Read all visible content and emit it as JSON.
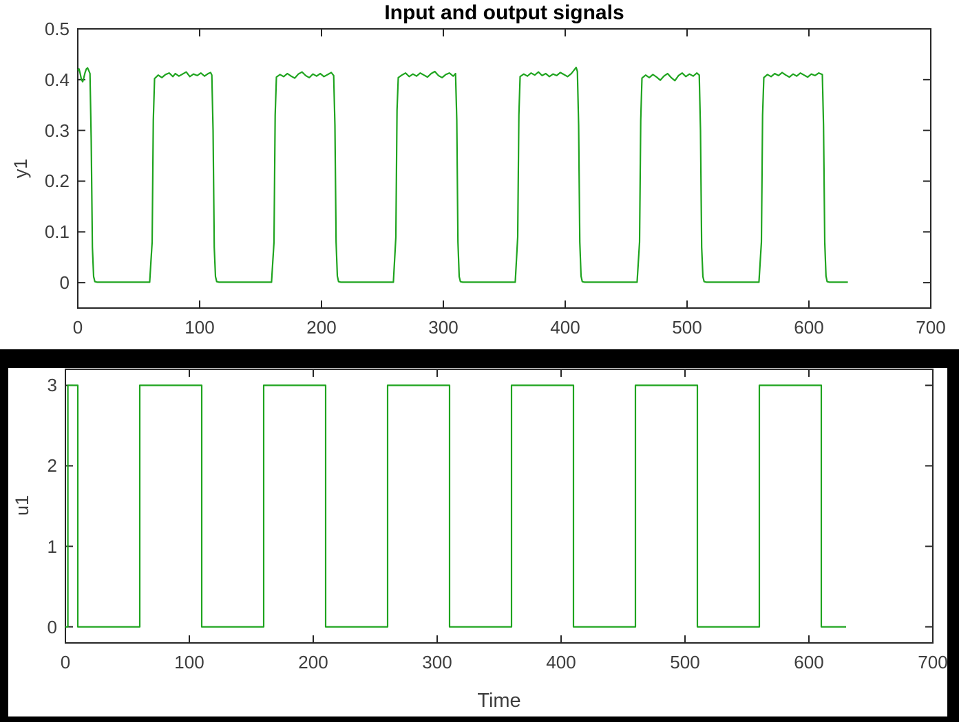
{
  "figure_title": "Input and output signals",
  "colors": {
    "line": "#1fa41f",
    "axis": "#262626",
    "tick_text": "#3d3d3d",
    "title_text": "#000000",
    "frame": "#000000",
    "background": "#ffffff"
  },
  "chart_data": [
    {
      "type": "line",
      "title": "Input and output signals",
      "ylabel": "y1",
      "xlabel": "",
      "xlim": [
        0,
        700
      ],
      "ylim": [
        -0.05,
        0.5
      ],
      "xtick_values": [
        0,
        100,
        200,
        300,
        400,
        500,
        600,
        700
      ],
      "xtick_labels": [
        "0",
        "100",
        "200",
        "300",
        "400",
        "500",
        "600",
        "700"
      ],
      "ytick_values": [
        0,
        0.1,
        0.2,
        0.3,
        0.4,
        0.5
      ],
      "ytick_labels": [
        "0",
        "0.1",
        "0.2",
        "0.3",
        "0.4",
        "0.5"
      ],
      "grid": false,
      "legend": null,
      "series": [
        {
          "name": "y1",
          "color": "#1fa41f",
          "points": [
            [
              0,
              0.418
            ],
            [
              1,
              0.421
            ],
            [
              2,
              0.412
            ],
            [
              3,
              0.4
            ],
            [
              4,
              0.396
            ],
            [
              5,
              0.404
            ],
            [
              6,
              0.414
            ],
            [
              7,
              0.421
            ],
            [
              8,
              0.423
            ],
            [
              9,
              0.418
            ],
            [
              10,
              0.412
            ],
            [
              11,
              0.28
            ],
            [
              12,
              0.07
            ],
            [
              13,
              0.012
            ],
            [
              14,
              0.002
            ],
            [
              16,
              0.001
            ],
            [
              59,
              0.001
            ],
            [
              61,
              0.08
            ],
            [
              62,
              0.32
            ],
            [
              63,
              0.402
            ],
            [
              66,
              0.409
            ],
            [
              69,
              0.404
            ],
            [
              72,
              0.41
            ],
            [
              75,
              0.413
            ],
            [
              78,
              0.406
            ],
            [
              80,
              0.412
            ],
            [
              83,
              0.407
            ],
            [
              86,
              0.411
            ],
            [
              89,
              0.415
            ],
            [
              92,
              0.406
            ],
            [
              95,
              0.411
            ],
            [
              98,
              0.408
            ],
            [
              101,
              0.413
            ],
            [
              104,
              0.407
            ],
            [
              107,
              0.412
            ],
            [
              109,
              0.414
            ],
            [
              110,
              0.409
            ],
            [
              111,
              0.3
            ],
            [
              112,
              0.07
            ],
            [
              113,
              0.012
            ],
            [
              114,
              0.002
            ],
            [
              116,
              0.001
            ],
            [
              159,
              0.001
            ],
            [
              161,
              0.08
            ],
            [
              162,
              0.33
            ],
            [
              163,
              0.405
            ],
            [
              166,
              0.41
            ],
            [
              169,
              0.406
            ],
            [
              172,
              0.412
            ],
            [
              175,
              0.407
            ],
            [
              178,
              0.403
            ],
            [
              181,
              0.411
            ],
            [
              184,
              0.415
            ],
            [
              187,
              0.408
            ],
            [
              190,
              0.404
            ],
            [
              193,
              0.411
            ],
            [
              196,
              0.407
            ],
            [
              199,
              0.412
            ],
            [
              202,
              0.406
            ],
            [
              205,
              0.41
            ],
            [
              208,
              0.414
            ],
            [
              210,
              0.408
            ],
            [
              211,
              0.31
            ],
            [
              212,
              0.08
            ],
            [
              213,
              0.013
            ],
            [
              214,
              0.002
            ],
            [
              216,
              0.001
            ],
            [
              259,
              0.001
            ],
            [
              261,
              0.09
            ],
            [
              262,
              0.34
            ],
            [
              263,
              0.404
            ],
            [
              266,
              0.409
            ],
            [
              269,
              0.413
            ],
            [
              272,
              0.406
            ],
            [
              275,
              0.411
            ],
            [
              278,
              0.407
            ],
            [
              281,
              0.413
            ],
            [
              284,
              0.409
            ],
            [
              287,
              0.405
            ],
            [
              290,
              0.412
            ],
            [
              293,
              0.416
            ],
            [
              296,
              0.408
            ],
            [
              299,
              0.404
            ],
            [
              302,
              0.41
            ],
            [
              305,
              0.413
            ],
            [
              308,
              0.407
            ],
            [
              310,
              0.412
            ],
            [
              311,
              0.32
            ],
            [
              312,
              0.08
            ],
            [
              313,
              0.012
            ],
            [
              314,
              0.002
            ],
            [
              316,
              0.001
            ],
            [
              359,
              0.001
            ],
            [
              361,
              0.09
            ],
            [
              362,
              0.33
            ],
            [
              363,
              0.406
            ],
            [
              366,
              0.411
            ],
            [
              369,
              0.407
            ],
            [
              372,
              0.413
            ],
            [
              375,
              0.409
            ],
            [
              378,
              0.415
            ],
            [
              381,
              0.408
            ],
            [
              384,
              0.412
            ],
            [
              387,
              0.406
            ],
            [
              390,
              0.411
            ],
            [
              393,
              0.408
            ],
            [
              396,
              0.414
            ],
            [
              399,
              0.41
            ],
            [
              402,
              0.406
            ],
            [
              405,
              0.412
            ],
            [
              407,
              0.418
            ],
            [
              409,
              0.424
            ],
            [
              410,
              0.416
            ],
            [
              411,
              0.31
            ],
            [
              412,
              0.08
            ],
            [
              413,
              0.013
            ],
            [
              414,
              0.002
            ],
            [
              416,
              0.001
            ],
            [
              459,
              0.001
            ],
            [
              461,
              0.08
            ],
            [
              462,
              0.32
            ],
            [
              463,
              0.403
            ],
            [
              466,
              0.409
            ],
            [
              469,
              0.404
            ],
            [
              472,
              0.41
            ],
            [
              475,
              0.405
            ],
            [
              478,
              0.399
            ],
            [
              481,
              0.407
            ],
            [
              484,
              0.412
            ],
            [
              487,
              0.404
            ],
            [
              490,
              0.398
            ],
            [
              493,
              0.408
            ],
            [
              496,
              0.413
            ],
            [
              499,
              0.406
            ],
            [
              502,
              0.411
            ],
            [
              505,
              0.407
            ],
            [
              508,
              0.413
            ],
            [
              510,
              0.409
            ],
            [
              511,
              0.3
            ],
            [
              512,
              0.07
            ],
            [
              513,
              0.012
            ],
            [
              514,
              0.002
            ],
            [
              516,
              0.001
            ],
            [
              559,
              0.001
            ],
            [
              561,
              0.08
            ],
            [
              562,
              0.33
            ],
            [
              563,
              0.404
            ],
            [
              566,
              0.41
            ],
            [
              569,
              0.406
            ],
            [
              572,
              0.412
            ],
            [
              575,
              0.408
            ],
            [
              578,
              0.414
            ],
            [
              581,
              0.409
            ],
            [
              584,
              0.405
            ],
            [
              587,
              0.411
            ],
            [
              590,
              0.407
            ],
            [
              593,
              0.413
            ],
            [
              596,
              0.409
            ],
            [
              599,
              0.405
            ],
            [
              602,
              0.411
            ],
            [
              605,
              0.408
            ],
            [
              608,
              0.413
            ],
            [
              611,
              0.41
            ],
            [
              612,
              0.31
            ],
            [
              613,
              0.08
            ],
            [
              614,
              0.013
            ],
            [
              615,
              0.002
            ],
            [
              617,
              0.001
            ],
            [
              632,
              0.001
            ]
          ]
        }
      ]
    },
    {
      "type": "line",
      "title": "",
      "ylabel": "u1",
      "xlabel": "Time",
      "xlim": [
        0,
        700
      ],
      "ylim": [
        -0.2,
        3.2
      ],
      "xtick_values": [
        0,
        100,
        200,
        300,
        400,
        500,
        600,
        700
      ],
      "xtick_labels": [
        "0",
        "100",
        "200",
        "300",
        "400",
        "500",
        "600",
        "700"
      ],
      "ytick_values": [
        0,
        1,
        2,
        3
      ],
      "ytick_labels": [
        "0",
        "1",
        "2",
        "3"
      ],
      "grid": false,
      "legend": null,
      "series": [
        {
          "name": "u1",
          "color": "#1fa41f",
          "points": [
            [
              0,
              0
            ],
            [
              2,
              0
            ],
            [
              2,
              3
            ],
            [
              10,
              3
            ],
            [
              10,
              0
            ],
            [
              60,
              0
            ],
            [
              60,
              3
            ],
            [
              110,
              3
            ],
            [
              110,
              0
            ],
            [
              160,
              0
            ],
            [
              160,
              3
            ],
            [
              210,
              3
            ],
            [
              210,
              0
            ],
            [
              260,
              0
            ],
            [
              260,
              3
            ],
            [
              310,
              3
            ],
            [
              310,
              0
            ],
            [
              360,
              0
            ],
            [
              360,
              3
            ],
            [
              410,
              3
            ],
            [
              410,
              0
            ],
            [
              460,
              0
            ],
            [
              460,
              3
            ],
            [
              510,
              3
            ],
            [
              510,
              0
            ],
            [
              560,
              0
            ],
            [
              560,
              3
            ],
            [
              610,
              3
            ],
            [
              610,
              0
            ],
            [
              630,
              0
            ]
          ]
        }
      ]
    }
  ]
}
